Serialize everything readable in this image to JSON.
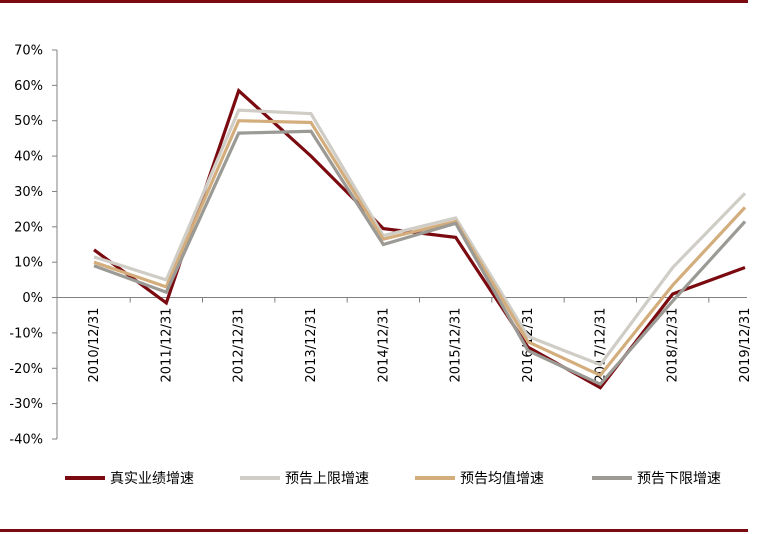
{
  "chart_data": {
    "type": "line",
    "categories": [
      "2010/12/31",
      "2011/12/31",
      "2012/12/31",
      "2013/12/31",
      "2014/12/31",
      "2015/12/31",
      "2016/12/31",
      "2017/12/31",
      "2018/12/31",
      "2019/12/31"
    ],
    "ylim": [
      -40,
      70
    ],
    "yticks": [
      -40,
      -30,
      -20,
      -10,
      0,
      10,
      20,
      30,
      40,
      50,
      60,
      70
    ],
    "ytick_labels": [
      "-40%",
      "-30%",
      "-20%",
      "-10%",
      "0%",
      "10%",
      "20%",
      "30%",
      "40%",
      "50%",
      "60%",
      "70%"
    ],
    "grid": false,
    "legend_position": "bottom",
    "series": [
      {
        "name": "真实业绩增速",
        "color": "#7a0a10",
        "values": [
          13.5,
          -1.5,
          58.5,
          40.0,
          19.5,
          17.0,
          -14.0,
          -25.5,
          1.0,
          8.5
        ]
      },
      {
        "name": "预告上限增速",
        "color": "#cfcdc6",
        "values": [
          11.5,
          5.0,
          53.0,
          52.0,
          17.5,
          22.5,
          -11.0,
          -19.0,
          8.5,
          29.5
        ]
      },
      {
        "name": "预告均值增速",
        "color": "#d4ad7c",
        "values": [
          10.0,
          3.0,
          50.0,
          49.5,
          16.5,
          21.5,
          -12.5,
          -22.0,
          3.5,
          25.5
        ]
      },
      {
        "name": "预告下限增速",
        "color": "#9b9a95",
        "values": [
          9.0,
          1.5,
          46.5,
          47.0,
          15.0,
          21.0,
          -15.0,
          -24.5,
          -1.0,
          21.5
        ]
      }
    ]
  }
}
